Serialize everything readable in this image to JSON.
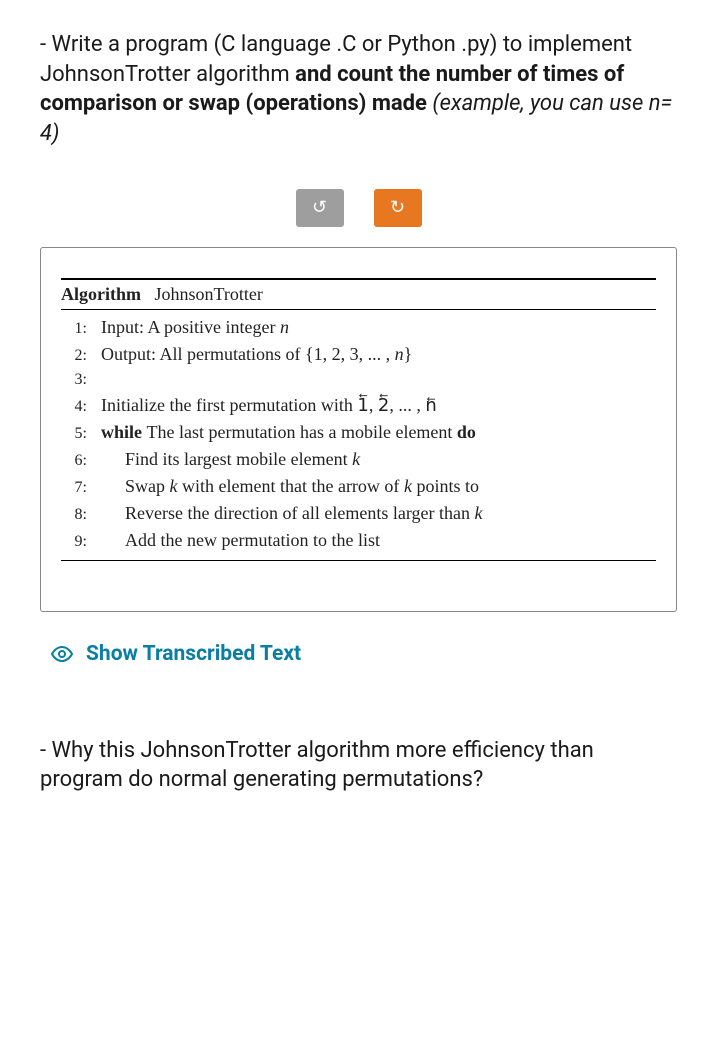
{
  "question1": {
    "pre": "- Write a program (C language .C or Python .py) to implement JohnsonTrotter algorithm ",
    "bold": "and count the number of times of comparison or swap (operations) made",
    "italic": "  (example, you can use n= 4)"
  },
  "buttons": {
    "undo_glyph": "↺",
    "redo_glyph": "↻"
  },
  "algorithm": {
    "header_label": "Algorithm",
    "header_name": "JohnsonTrotter",
    "lines": [
      {
        "n": "1:",
        "indent": 0,
        "segments": [
          {
            "t": "Input: A positive integer ",
            "s": "plain"
          },
          {
            "t": "n",
            "s": "i"
          }
        ]
      },
      {
        "n": "2:",
        "indent": 0,
        "segments": [
          {
            "t": "Output: All permutations of {1, 2, 3, ... , ",
            "s": "plain"
          },
          {
            "t": "n",
            "s": "i"
          },
          {
            "t": "}",
            "s": "plain"
          }
        ]
      },
      {
        "n": "3:",
        "indent": 0,
        "segments": []
      },
      {
        "n": "4:",
        "indent": 0,
        "segments": [
          {
            "t": "Initialize the first permutation with 1⃖, 2⃖, ... , n⃖",
            "s": "plain"
          }
        ]
      },
      {
        "n": "5:",
        "indent": 0,
        "segments": [
          {
            "t": "while ",
            "s": "kw"
          },
          {
            "t": "The last permutation has a mobile element ",
            "s": "plain"
          },
          {
            "t": "do",
            "s": "kw"
          }
        ]
      },
      {
        "n": "6:",
        "indent": 1,
        "segments": [
          {
            "t": "Find its largest mobile element ",
            "s": "plain"
          },
          {
            "t": "k",
            "s": "i"
          }
        ]
      },
      {
        "n": "7:",
        "indent": 1,
        "segments": [
          {
            "t": "Swap ",
            "s": "plain"
          },
          {
            "t": "k",
            "s": "i"
          },
          {
            "t": " with element that the arrow of ",
            "s": "plain"
          },
          {
            "t": "k",
            "s": "i"
          },
          {
            "t": " points to",
            "s": "plain"
          }
        ]
      },
      {
        "n": "8:",
        "indent": 1,
        "segments": [
          {
            "t": "Reverse the direction of all elements larger than ",
            "s": "plain"
          },
          {
            "t": "k",
            "s": "i"
          }
        ]
      },
      {
        "n": "9:",
        "indent": 1,
        "segments": [
          {
            "t": "Add the new permutation to the list",
            "s": "plain"
          }
        ]
      }
    ]
  },
  "transcribed_label": "Show Transcribed Text",
  "question2": "- Why this JohnsonTrotter algorithm more efficiency than program do normal generating permutations?",
  "colors": {
    "link": "#0a7ea4",
    "btn_gray": "#9e9e9e",
    "btn_orange": "#e87722"
  }
}
